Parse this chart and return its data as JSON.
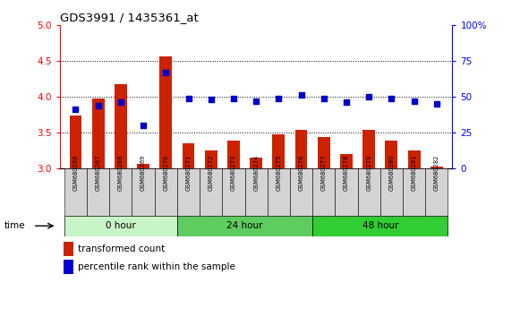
{
  "title": "GDS3991 / 1435361_at",
  "samples": [
    "GSM680266",
    "GSM680267",
    "GSM680268",
    "GSM680269",
    "GSM680270",
    "GSM680271",
    "GSM680272",
    "GSM680273",
    "GSM680274",
    "GSM680275",
    "GSM680276",
    "GSM680277",
    "GSM680278",
    "GSM680279",
    "GSM680280",
    "GSM680281",
    "GSM680282"
  ],
  "transformed_count": [
    3.73,
    3.97,
    4.17,
    3.06,
    4.56,
    3.35,
    3.25,
    3.38,
    3.15,
    3.47,
    3.54,
    3.43,
    3.19,
    3.54,
    3.38,
    3.25,
    3.02
  ],
  "percentile_rank": [
    41,
    44,
    46,
    30,
    67,
    49,
    48,
    49,
    47,
    49,
    51,
    49,
    46,
    50,
    49,
    47,
    45
  ],
  "group_info": [
    {
      "start": 0,
      "end": 5,
      "color": "#c8f5c8",
      "label": "0 hour"
    },
    {
      "start": 5,
      "end": 11,
      "color": "#5fcc5f",
      "label": "24 hour"
    },
    {
      "start": 11,
      "end": 17,
      "color": "#32cd32",
      "label": "48 hour"
    }
  ],
  "ylim_left": [
    3.0,
    5.0
  ],
  "ylim_right": [
    0,
    100
  ],
  "yticks_left": [
    3.0,
    3.5,
    4.0,
    4.5,
    5.0
  ],
  "yticks_right": [
    0,
    25,
    50,
    75,
    100
  ],
  "bar_color": "#cc2200",
  "dot_color": "#0000cc",
  "sample_box_color": "#d3d3d3",
  "grid_dotted_vals": [
    3.5,
    4.0,
    4.5
  ],
  "legend_bar_label": "transformed count",
  "legend_dot_label": "percentile rank within the sample"
}
